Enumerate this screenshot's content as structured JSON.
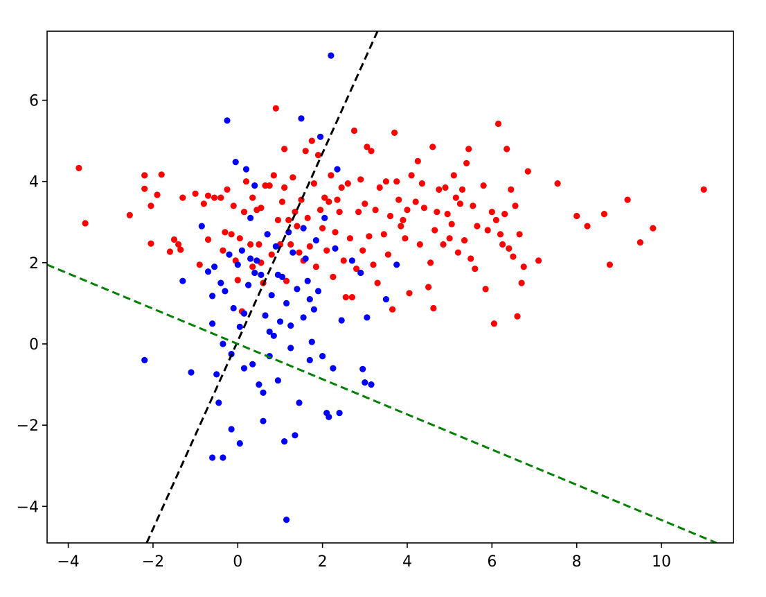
{
  "chart_data": {
    "type": "scatter",
    "title": "",
    "xlabel": "",
    "ylabel": "",
    "xlim": [
      -4.5,
      11.7
    ],
    "ylim": [
      -4.9,
      7.7
    ],
    "grid": false,
    "legend": "none",
    "x_ticks": [
      {
        "value": -4,
        "label": "−4"
      },
      {
        "value": -2,
        "label": "−2"
      },
      {
        "value": 0,
        "label": "0"
      },
      {
        "value": 2,
        "label": "2"
      },
      {
        "value": 4,
        "label": "4"
      },
      {
        "value": 6,
        "label": "6"
      },
      {
        "value": 8,
        "label": "8"
      },
      {
        "value": 10,
        "label": "10"
      }
    ],
    "y_ticks": [
      {
        "value": -4,
        "label": "−4"
      },
      {
        "value": -2,
        "label": "−2"
      },
      {
        "value": 0,
        "label": "0"
      },
      {
        "value": 2,
        "label": "2"
      },
      {
        "value": 4,
        "label": "4"
      },
      {
        "value": 6,
        "label": "6"
      }
    ],
    "series": [
      {
        "color": "#ff0000",
        "marker": "circle",
        "points": [
          [
            -3.75,
            4.33
          ],
          [
            -3.6,
            2.97
          ],
          [
            -2.55,
            3.17
          ],
          [
            -2.2,
            3.82
          ],
          [
            -2.2,
            4.15
          ],
          [
            -2.05,
            3.4
          ],
          [
            -2.05,
            2.47
          ],
          [
            -1.9,
            3.67
          ],
          [
            -1.8,
            4.17
          ],
          [
            -1.6,
            2.27
          ],
          [
            -1.5,
            2.57
          ],
          [
            -1.4,
            2.45
          ],
          [
            -1.35,
            2.32
          ],
          [
            -1.3,
            3.6
          ],
          [
            -1.0,
            3.7
          ],
          [
            -0.9,
            1.95
          ],
          [
            -0.8,
            3.45
          ],
          [
            -0.7,
            2.57
          ],
          [
            -0.7,
            3.65
          ],
          [
            -0.55,
            3.6
          ],
          [
            -0.4,
            3.6
          ],
          [
            -0.35,
            2.3
          ],
          [
            -0.3,
            2.75
          ],
          [
            -0.25,
            3.8
          ],
          [
            -0.15,
            2.7
          ],
          [
            -0.1,
            3.4
          ],
          [
            -0.05,
            2.05
          ],
          [
            0.0,
            1.57
          ],
          [
            0.05,
            2.6
          ],
          [
            0.1,
            0.8
          ],
          [
            0.15,
            3.25
          ],
          [
            0.2,
            4.0
          ],
          [
            0.3,
            2.45
          ],
          [
            0.35,
            3.6
          ],
          [
            0.35,
            1.9
          ],
          [
            0.45,
            3.3
          ],
          [
            0.5,
            2.45
          ],
          [
            0.55,
            3.35
          ],
          [
            0.55,
            2.0
          ],
          [
            0.6,
            1.5
          ],
          [
            0.65,
            3.9
          ],
          [
            0.7,
            2.7
          ],
          [
            0.75,
            3.9
          ],
          [
            0.8,
            2.2
          ],
          [
            0.85,
            4.15
          ],
          [
            0.9,
            5.8
          ],
          [
            0.95,
            3.05
          ],
          [
            1.0,
            2.45
          ],
          [
            1.05,
            3.5
          ],
          [
            1.1,
            4.8
          ],
          [
            1.1,
            3.85
          ],
          [
            1.15,
            1.55
          ],
          [
            1.2,
            3.05
          ],
          [
            1.25,
            2.45
          ],
          [
            1.3,
            4.1
          ],
          [
            1.35,
            3.25
          ],
          [
            1.4,
            2.9
          ],
          [
            1.45,
            2.25
          ],
          [
            1.5,
            3.55
          ],
          [
            1.55,
            2.05
          ],
          [
            1.6,
            4.75
          ],
          [
            1.65,
            3.1
          ],
          [
            1.7,
            2.4
          ],
          [
            1.75,
            5.0
          ],
          [
            1.8,
            3.95
          ],
          [
            1.85,
            1.9
          ],
          [
            1.9,
            4.65
          ],
          [
            1.95,
            3.3
          ],
          [
            2.0,
            2.85
          ],
          [
            2.05,
            3.6
          ],
          [
            2.1,
            2.3
          ],
          [
            2.15,
            3.5
          ],
          [
            2.2,
            4.15
          ],
          [
            2.25,
            1.65
          ],
          [
            2.3,
            2.75
          ],
          [
            2.35,
            3.55
          ],
          [
            2.4,
            3.25
          ],
          [
            2.45,
            3.85
          ],
          [
            2.5,
            2.05
          ],
          [
            2.55,
            1.15
          ],
          [
            2.6,
            3.95
          ],
          [
            2.65,
            2.6
          ],
          [
            2.7,
            1.15
          ],
          [
            2.75,
            5.25
          ],
          [
            2.8,
            1.85
          ],
          [
            2.85,
            3.25
          ],
          [
            2.9,
            4.05
          ],
          [
            2.95,
            2.3
          ],
          [
            3.0,
            3.45
          ],
          [
            3.05,
            4.85
          ],
          [
            3.1,
            2.65
          ],
          [
            3.15,
            4.75
          ],
          [
            3.2,
            1.95
          ],
          [
            3.25,
            3.3
          ],
          [
            3.3,
            1.5
          ],
          [
            3.35,
            3.85
          ],
          [
            3.45,
            2.7
          ],
          [
            3.5,
            4.0
          ],
          [
            3.55,
            2.2
          ],
          [
            3.6,
            3.15
          ],
          [
            3.65,
            0.85
          ],
          [
            3.7,
            5.2
          ],
          [
            3.75,
            4.0
          ],
          [
            3.8,
            3.55
          ],
          [
            3.85,
            2.9
          ],
          [
            3.9,
            3.05
          ],
          [
            3.95,
            2.6
          ],
          [
            4.0,
            3.3
          ],
          [
            4.05,
            1.25
          ],
          [
            4.1,
            4.15
          ],
          [
            4.2,
            3.5
          ],
          [
            4.25,
            4.5
          ],
          [
            4.3,
            2.45
          ],
          [
            4.35,
            3.95
          ],
          [
            4.4,
            3.35
          ],
          [
            4.5,
            1.4
          ],
          [
            4.55,
            2.0
          ],
          [
            4.6,
            4.85
          ],
          [
            4.62,
            0.88
          ],
          [
            4.65,
            2.8
          ],
          [
            4.7,
            3.25
          ],
          [
            4.75,
            3.8
          ],
          [
            4.85,
            2.45
          ],
          [
            4.9,
            3.85
          ],
          [
            4.95,
            3.2
          ],
          [
            5.0,
            2.6
          ],
          [
            5.05,
            2.95
          ],
          [
            5.1,
            4.15
          ],
          [
            5.15,
            3.6
          ],
          [
            5.2,
            2.25
          ],
          [
            5.25,
            3.45
          ],
          [
            5.3,
            3.8
          ],
          [
            5.35,
            2.55
          ],
          [
            5.4,
            4.45
          ],
          [
            5.45,
            4.8
          ],
          [
            5.5,
            2.1
          ],
          [
            5.55,
            3.4
          ],
          [
            5.6,
            1.85
          ],
          [
            5.65,
            2.9
          ],
          [
            5.8,
            3.9
          ],
          [
            5.85,
            1.35
          ],
          [
            5.9,
            2.8
          ],
          [
            6.0,
            3.25
          ],
          [
            6.05,
            0.5
          ],
          [
            6.1,
            3.05
          ],
          [
            6.15,
            5.42
          ],
          [
            6.2,
            2.7
          ],
          [
            6.25,
            2.45
          ],
          [
            6.3,
            3.2
          ],
          [
            6.35,
            4.8
          ],
          [
            6.4,
            2.35
          ],
          [
            6.45,
            3.8
          ],
          [
            6.5,
            2.15
          ],
          [
            6.55,
            3.4
          ],
          [
            6.6,
            0.68
          ],
          [
            6.65,
            2.7
          ],
          [
            6.7,
            1.5
          ],
          [
            6.75,
            1.9
          ],
          [
            6.85,
            4.25
          ],
          [
            7.1,
            2.05
          ],
          [
            7.55,
            3.95
          ],
          [
            8.0,
            3.15
          ],
          [
            8.25,
            2.9
          ],
          [
            8.65,
            3.2
          ],
          [
            8.78,
            1.95
          ],
          [
            9.2,
            3.55
          ],
          [
            9.5,
            2.5
          ],
          [
            9.8,
            2.85
          ],
          [
            11.0,
            3.8
          ]
        ]
      },
      {
        "color": "#0000ff",
        "marker": "circle",
        "points": [
          [
            -2.2,
            -0.4
          ],
          [
            -1.3,
            1.55
          ],
          [
            -1.1,
            -0.7
          ],
          [
            -0.85,
            2.9
          ],
          [
            -0.7,
            1.78
          ],
          [
            -0.6,
            1.18
          ],
          [
            -0.6,
            0.5
          ],
          [
            -0.55,
            1.9
          ],
          [
            -0.5,
            -0.75
          ],
          [
            -0.45,
            -1.45
          ],
          [
            -0.4,
            1.5
          ],
          [
            -0.35,
            0.0
          ],
          [
            -0.3,
            1.3
          ],
          [
            -0.25,
            5.5
          ],
          [
            -0.2,
            2.2
          ],
          [
            -0.15,
            -0.25
          ],
          [
            -0.1,
            0.88
          ],
          [
            -0.05,
            4.48
          ],
          [
            0.0,
            1.95
          ],
          [
            0.05,
            0.42
          ],
          [
            0.1,
            2.3
          ],
          [
            0.15,
            -0.6
          ],
          [
            0.2,
            4.3
          ],
          [
            0.25,
            1.45
          ],
          [
            0.3,
            3.1
          ],
          [
            0.35,
            -0.5
          ],
          [
            0.4,
            3.9
          ],
          [
            0.45,
            2.05
          ],
          [
            0.5,
            -1.0
          ],
          [
            0.55,
            1.7
          ],
          [
            0.6,
            -1.2
          ],
          [
            0.65,
            0.7
          ],
          [
            0.7,
            2.7
          ],
          [
            0.75,
            -0.3
          ],
          [
            0.8,
            1.2
          ],
          [
            0.85,
            0.2
          ],
          [
            0.9,
            2.4
          ],
          [
            0.95,
            -0.9
          ],
          [
            1.0,
            0.55
          ],
          [
            1.05,
            1.65
          ],
          [
            1.1,
            -2.4
          ],
          [
            1.15,
            -4.33
          ],
          [
            1.2,
            2.75
          ],
          [
            1.25,
            -0.1
          ],
          [
            1.3,
            2.25
          ],
          [
            1.35,
            -2.25
          ],
          [
            1.4,
            1.35
          ],
          [
            1.45,
            -1.45
          ],
          [
            1.5,
            5.55
          ],
          [
            1.55,
            0.65
          ],
          [
            1.6,
            2.1
          ],
          [
            1.65,
            1.55
          ],
          [
            1.7,
            -0.4
          ],
          [
            1.75,
            0.05
          ],
          [
            1.8,
            0.85
          ],
          [
            1.85,
            2.55
          ],
          [
            1.9,
            1.3
          ],
          [
            1.95,
            5.1
          ],
          [
            2.0,
            -0.3
          ],
          [
            2.05,
            3.1
          ],
          [
            2.1,
            -1.7
          ],
          [
            2.15,
            -1.8
          ],
          [
            2.2,
            7.1
          ],
          [
            2.25,
            -0.6
          ],
          [
            2.3,
            2.35
          ],
          [
            2.35,
            4.3
          ],
          [
            2.4,
            -1.7
          ],
          [
            2.45,
            0.58
          ],
          [
            2.7,
            2.05
          ],
          [
            2.9,
            1.75
          ],
          [
            2.95,
            -0.62
          ],
          [
            3.0,
            -0.95
          ],
          [
            3.05,
            0.65
          ],
          [
            3.15,
            -1.0
          ],
          [
            3.5,
            1.1
          ],
          [
            3.75,
            1.95
          ],
          [
            -0.6,
            -2.8
          ],
          [
            -0.35,
            -2.8
          ],
          [
            0.05,
            -2.45
          ],
          [
            -0.15,
            -2.1
          ],
          [
            0.6,
            -1.9
          ],
          [
            0.15,
            0.75
          ],
          [
            1.25,
            0.45
          ],
          [
            0.4,
            1.75
          ],
          [
            0.95,
            1.7
          ],
          [
            1.55,
            2.85
          ],
          [
            0.75,
            0.3
          ],
          [
            1.15,
            1.0
          ],
          [
            0.3,
            2.1
          ],
          [
            1.7,
            1.1
          ]
        ]
      }
    ],
    "lines": [
      {
        "color": "#000000",
        "style": "dashed",
        "x": [
          -2.15,
          3.3
        ],
        "y": [
          -4.9,
          7.7
        ]
      },
      {
        "color": "#008000",
        "style": "dashed",
        "x": [
          -4.5,
          11.3
        ],
        "y": [
          1.95,
          -4.9
        ]
      }
    ]
  }
}
